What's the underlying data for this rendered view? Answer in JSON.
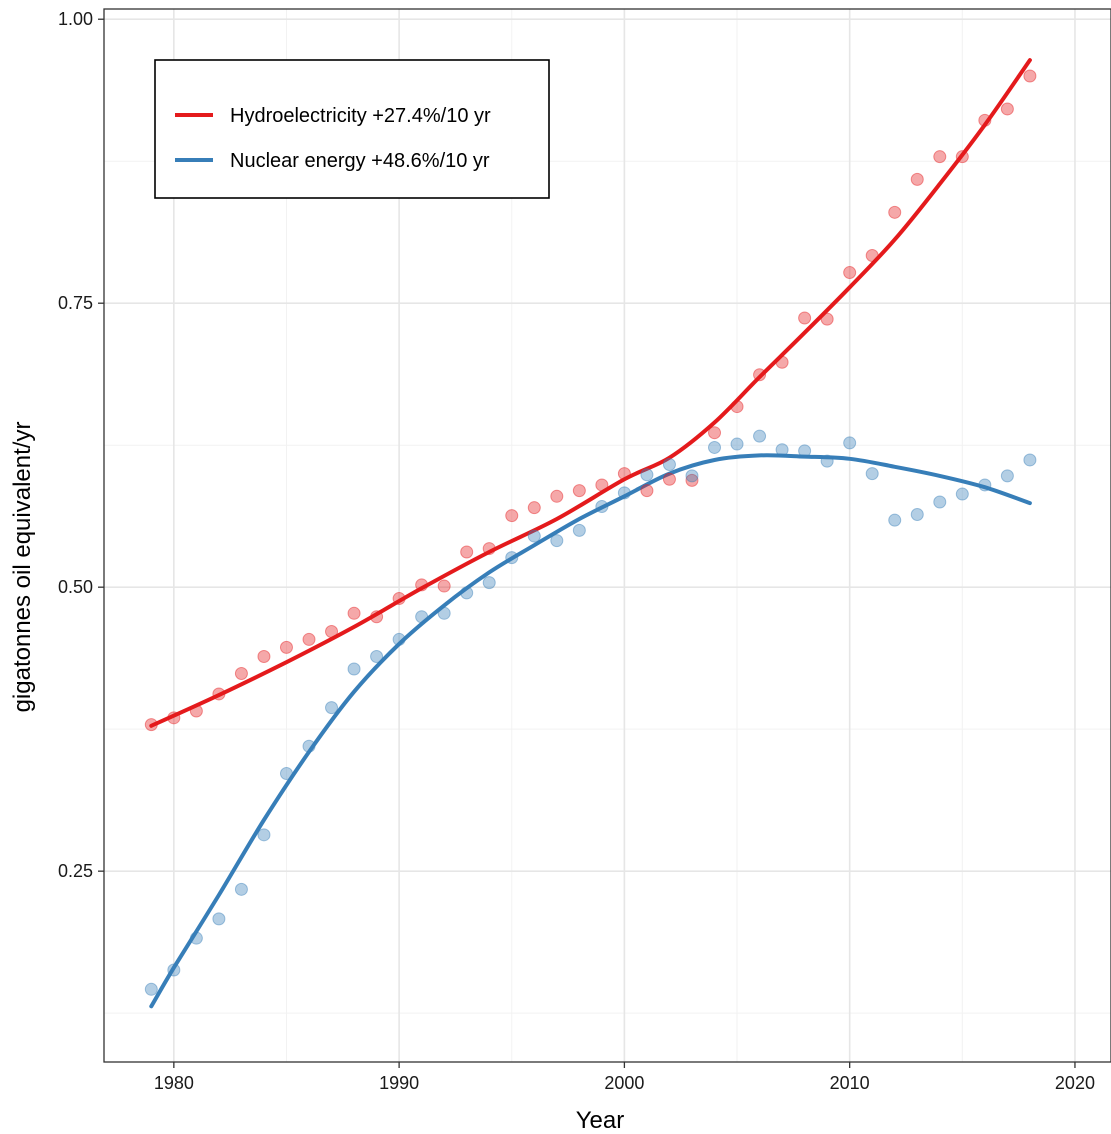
{
  "chart_data": {
    "type": "scatter",
    "xlabel": "Year",
    "ylabel": "gigatonnes oil equivalent/yr",
    "xlim": [
      1976.9,
      2021.6
    ],
    "ylim": [
      0.082,
      1.009
    ],
    "x_ticks": [
      1980,
      1990,
      2000,
      2010,
      2020
    ],
    "x_tick_labels": [
      "1980",
      "1990",
      "2000",
      "2010",
      "2020"
    ],
    "y_ticks": [
      0.25,
      0.5,
      0.75,
      1.0
    ],
    "y_tick_labels": [
      "0.25",
      "0.50",
      "0.75",
      "1.00"
    ],
    "grid": true,
    "legend_position": "top-left",
    "series": [
      {
        "name": "Hydroelectricity +27.4%/10 yr",
        "color": "#E41A1C",
        "points": {
          "x": [
            1979,
            1980,
            1981,
            1982,
            1983,
            1984,
            1985,
            1986,
            1987,
            1988,
            1989,
            1990,
            1991,
            1992,
            1993,
            1994,
            1995,
            1996,
            1997,
            1998,
            1999,
            2000,
            2001,
            2002,
            2003,
            2004,
            2005,
            2006,
            2007,
            2008,
            2009,
            2010,
            2011,
            2012,
            2013,
            2014,
            2015,
            2016,
            2017,
            2018
          ],
          "y": [
            0.379,
            0.385,
            0.391,
            0.406,
            0.424,
            0.439,
            0.447,
            0.454,
            0.461,
            0.477,
            0.474,
            0.49,
            0.502,
            0.501,
            0.531,
            0.534,
            0.563,
            0.57,
            0.58,
            0.585,
            0.59,
            0.6,
            0.585,
            0.595,
            0.594,
            0.636,
            0.659,
            0.687,
            0.698,
            0.737,
            0.736,
            0.777,
            0.792,
            0.83,
            0.859,
            0.879,
            0.879,
            0.911,
            0.921,
            0.95
          ]
        },
        "trend": {
          "x": [
            1979,
            1982,
            1985,
            1988,
            1991,
            1994,
            1997,
            2000,
            2002,
            2004,
            2006,
            2008,
            2010,
            2012,
            2014,
            2016,
            2018
          ],
          "y": [
            0.378,
            0.405,
            0.434,
            0.465,
            0.499,
            0.531,
            0.56,
            0.595,
            0.614,
            0.645,
            0.685,
            0.724,
            0.764,
            0.806,
            0.855,
            0.907,
            0.964
          ]
        }
      },
      {
        "name": "Nuclear energy +48.6%/10 yr",
        "color": "#377EB8",
        "points": {
          "x": [
            1979,
            1980,
            1981,
            1982,
            1983,
            1984,
            1985,
            1986,
            1987,
            1988,
            1989,
            1990,
            1991,
            1992,
            1993,
            1994,
            1995,
            1996,
            1997,
            1998,
            1999,
            2000,
            2001,
            2002,
            2003,
            2004,
            2005,
            2006,
            2007,
            2008,
            2009,
            2010,
            2011,
            2012,
            2013,
            2014,
            2015,
            2016,
            2017,
            2018
          ],
          "y": [
            0.146,
            0.163,
            0.191,
            0.208,
            0.234,
            0.282,
            0.336,
            0.36,
            0.394,
            0.428,
            0.439,
            0.454,
            0.474,
            0.477,
            0.495,
            0.504,
            0.526,
            0.545,
            0.541,
            0.55,
            0.571,
            0.583,
            0.599,
            0.608,
            0.598,
            0.623,
            0.626,
            0.633,
            0.621,
            0.62,
            0.611,
            0.627,
            0.6,
            0.559,
            0.564,
            0.575,
            0.582,
            0.59,
            0.598,
            0.612
          ]
        },
        "trend": {
          "x": [
            1979,
            1980,
            1982,
            1984,
            1986,
            1988,
            1990,
            1992,
            1994,
            1996,
            1998,
            2000,
            2002,
            2004,
            2006,
            2008,
            2010,
            2012,
            2014,
            2016,
            2018
          ],
          "y": [
            0.131,
            0.165,
            0.229,
            0.295,
            0.355,
            0.408,
            0.45,
            0.484,
            0.513,
            0.537,
            0.56,
            0.58,
            0.6,
            0.612,
            0.616,
            0.615,
            0.613,
            0.606,
            0.598,
            0.588,
            0.574
          ]
        }
      }
    ]
  }
}
